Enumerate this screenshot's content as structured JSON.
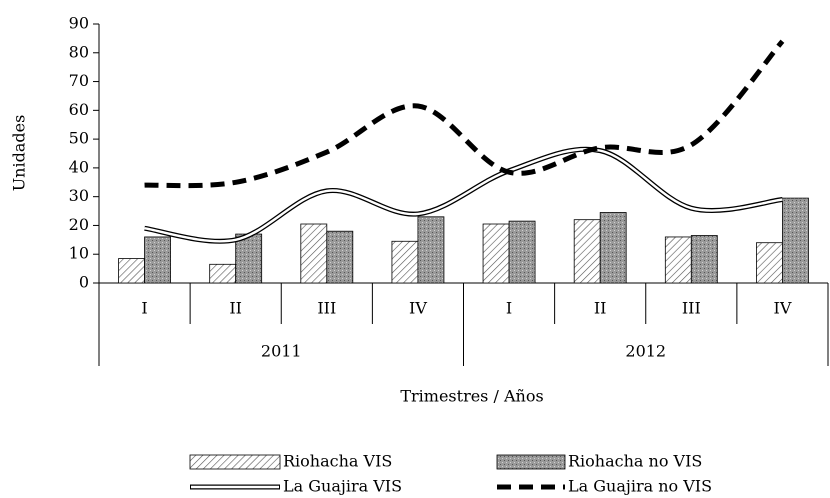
{
  "chart_data": {
    "type": "bar_line",
    "categories": [
      "I",
      "II",
      "III",
      "IV",
      "I",
      "II",
      "III",
      "IV"
    ],
    "groups": [
      "2011",
      "2012"
    ],
    "x_label": "Trimestres / Años",
    "y_label": "Unidades",
    "ylim": [
      0,
      90
    ],
    "yticks": [
      0,
      10,
      20,
      30,
      40,
      50,
      60,
      70,
      80,
      90
    ],
    "grid": false,
    "legend": "bottom",
    "series": [
      {
        "name": "Riohacha VIS",
        "type": "bar",
        "color": "#ffffff",
        "pattern": "hatch",
        "values": [
          8.5,
          6.5,
          20.5,
          14.5,
          20.5,
          22,
          16,
          14
        ]
      },
      {
        "name": "Riohacha no VIS",
        "type": "bar",
        "color": "#9a9a9a",
        "pattern": "stipple",
        "values": [
          16,
          17,
          18,
          23,
          21.5,
          24.5,
          16.5,
          29.5
        ]
      },
      {
        "name": "La Guajira VIS",
        "type": "line",
        "color": "#000000",
        "style": "double",
        "values": [
          19,
          15,
          32,
          24,
          39,
          46,
          26,
          29
        ]
      },
      {
        "name": "La Guajira no VIS",
        "type": "line",
        "color": "#000000",
        "style": "dashed",
        "values": [
          34,
          35,
          45.5,
          61.5,
          38.5,
          47,
          48,
          84
        ]
      }
    ]
  }
}
